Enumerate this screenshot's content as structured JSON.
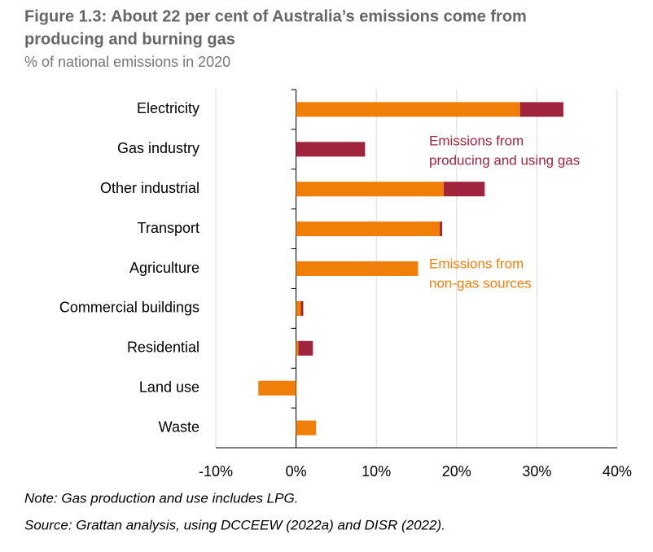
{
  "chart_data": {
    "type": "stacked-bar-horizontal",
    "title": [
      "Figure 1.3: About 22 per cent of Australia’s emissions come from",
      "producing and burning gas"
    ],
    "subtitle": "% of national emissions in 2020",
    "categories": [
      "Electricity",
      "Gas industry",
      "Other industrial",
      "Transport",
      "Agriculture",
      "Commercial buildings",
      "Residential",
      "Land use",
      "Waste"
    ],
    "series": [
      {
        "color": "#f07f09",
        "values": [
          27.9,
          0,
          18.4,
          17.9,
          15.2,
          0.6,
          0.3,
          -4.7,
          2.5
        ]
      },
      {
        "color": "#a1243f",
        "values": [
          5.4,
          8.6,
          5.1,
          0.3,
          0,
          0.3,
          1.8,
          0,
          0
        ]
      }
    ],
    "annotations": [
      {
        "lines": [
          "Emissions from",
          "producing and using gas"
        ],
        "color": "#a1243f"
      },
      {
        "lines": [
          "Emissions from",
          "non-gas sources"
        ],
        "color": "#f07f09"
      }
    ],
    "xlim": [
      -10,
      40
    ],
    "xticks": [
      {
        "value": -10,
        "label": "-10%"
      },
      {
        "value": 0,
        "label": "0%"
      },
      {
        "value": 10,
        "label": "10%"
      },
      {
        "value": 20,
        "label": "20%"
      },
      {
        "value": 30,
        "label": "30%"
      },
      {
        "value": 40,
        "label": "40%"
      }
    ],
    "grid": true,
    "notes": [
      "Note: Gas production and use includes LPG.",
      "Source: Grattan analysis, using DCCEEW (2022a) and DISR (2022)."
    ]
  }
}
